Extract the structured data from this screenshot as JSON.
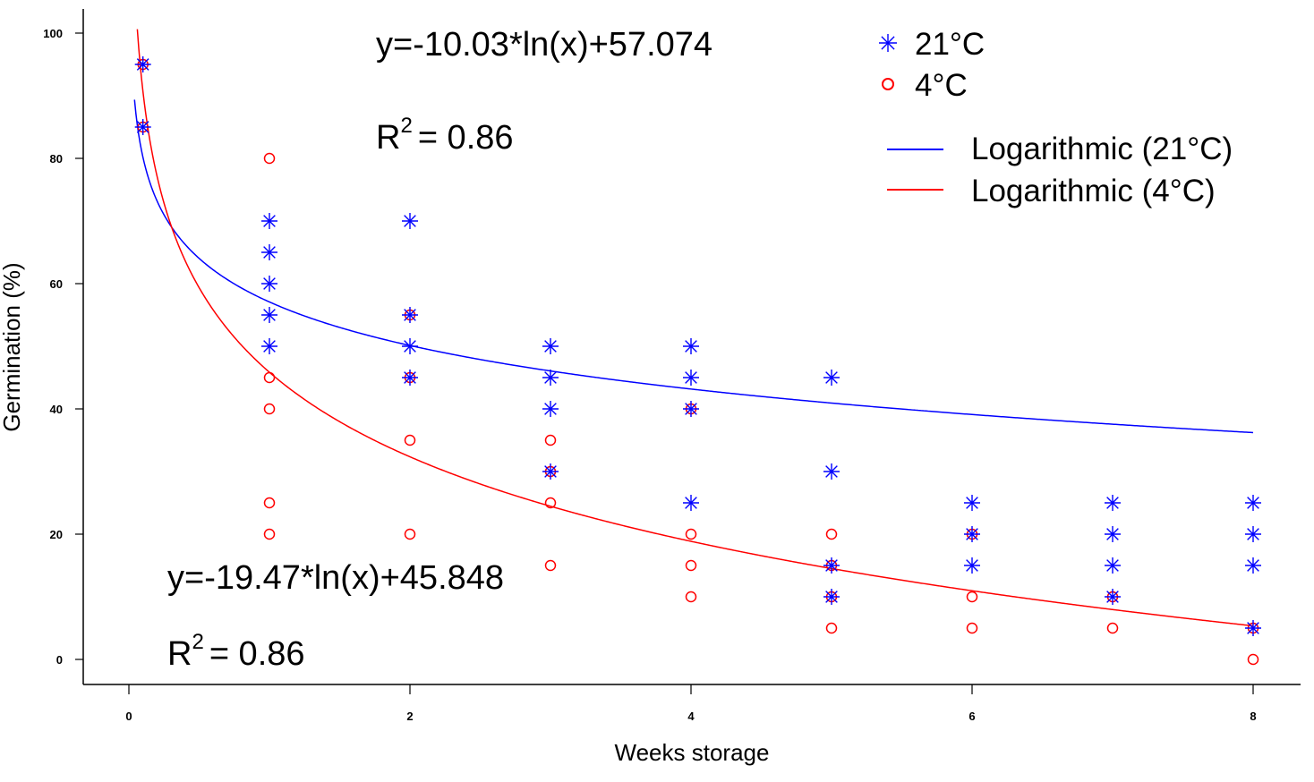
{
  "chart_data": {
    "type": "scatter",
    "title": "",
    "xlabel": "Weeks  storage",
    "ylabel": "Germination  (%)",
    "xlim": [
      -0.3,
      8.2
    ],
    "ylim": [
      -4,
      104
    ],
    "xticks": [
      0,
      2,
      4,
      6,
      8
    ],
    "yticks": [
      0,
      20,
      40,
      60,
      80,
      100
    ],
    "grid": false,
    "legend_position": "top-right",
    "series": [
      {
        "name": "21°C",
        "marker": "asterisk",
        "color": "#0000ff",
        "points": [
          [
            0.1,
            95
          ],
          [
            0.1,
            85
          ],
          [
            1,
            70
          ],
          [
            1,
            65
          ],
          [
            1,
            60
          ],
          [
            1,
            55
          ],
          [
            1,
            50
          ],
          [
            2,
            70
          ],
          [
            2,
            55
          ],
          [
            2,
            50
          ],
          [
            2,
            45
          ],
          [
            3,
            50
          ],
          [
            3,
            45
          ],
          [
            3,
            40
          ],
          [
            3,
            30
          ],
          [
            4,
            50
          ],
          [
            4,
            45
          ],
          [
            4,
            40
          ],
          [
            4,
            25
          ],
          [
            5,
            45
          ],
          [
            5,
            30
          ],
          [
            5,
            15
          ],
          [
            5,
            10
          ],
          [
            6,
            25
          ],
          [
            6,
            20
          ],
          [
            6,
            15
          ],
          [
            7,
            25
          ],
          [
            7,
            20
          ],
          [
            7,
            15
          ],
          [
            7,
            10
          ],
          [
            8,
            25
          ],
          [
            8,
            20
          ],
          [
            8,
            15
          ],
          [
            8,
            5
          ]
        ]
      },
      {
        "name": "4°C",
        "marker": "circle",
        "color": "#ff0000",
        "points": [
          [
            0.1,
            95
          ],
          [
            0.1,
            85
          ],
          [
            1,
            80
          ],
          [
            1,
            45
          ],
          [
            1,
            40
          ],
          [
            1,
            25
          ],
          [
            1,
            20
          ],
          [
            2,
            55
          ],
          [
            2,
            45
          ],
          [
            2,
            35
          ],
          [
            2,
            20
          ],
          [
            3,
            35
          ],
          [
            3,
            30
          ],
          [
            3,
            25
          ],
          [
            3,
            15
          ],
          [
            4,
            40
          ],
          [
            4,
            20
          ],
          [
            4,
            15
          ],
          [
            4,
            10
          ],
          [
            5,
            20
          ],
          [
            5,
            15
          ],
          [
            5,
            10
          ],
          [
            5,
            5
          ],
          [
            6,
            20
          ],
          [
            6,
            10
          ],
          [
            6,
            5
          ],
          [
            7,
            10
          ],
          [
            7,
            5
          ],
          [
            8,
            5
          ],
          [
            8,
            0
          ]
        ]
      }
    ],
    "trendlines": [
      {
        "name": "Logarithmic (21°C)",
        "color": "#0000ff",
        "a": -10.03,
        "b": 57.074,
        "equation": "y=-10.03*ln(x)+57.074",
        "r2_label": "R",
        "r2_sup": "2",
        "r2_value": "= 0.86"
      },
      {
        "name": "Logarithmic (4°C)",
        "color": "#ff0000",
        "a": -19.47,
        "b": 45.848,
        "equation": "y=-19.47*ln(x)+45.848",
        "r2_label": "R",
        "r2_sup": "2",
        "r2_value": "= 0.86"
      }
    ],
    "legend": [
      {
        "label": "21°C",
        "kind": "asterisk",
        "color": "#0000ff"
      },
      {
        "label": "4°C",
        "kind": "circle",
        "color": "#ff0000"
      },
      {
        "label": "Logarithmic (21°C)",
        "kind": "line",
        "color": "#0000ff"
      },
      {
        "label": "Logarithmic (4°C)",
        "kind": "line",
        "color": "#ff0000"
      }
    ]
  }
}
